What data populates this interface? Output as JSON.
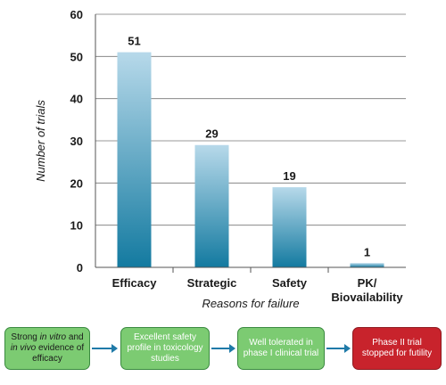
{
  "chart_data": {
    "type": "bar",
    "categories": [
      [
        "Efficacy"
      ],
      [
        "Strategic"
      ],
      [
        "Safety"
      ],
      [
        "PK/",
        "Biovailability"
      ]
    ],
    "values": [
      51,
      29,
      19,
      1
    ],
    "data_labels": [
      "51",
      "29",
      "19",
      "1"
    ],
    "ylabel": "Number of trials",
    "xlabel": "Reasons for failure",
    "ylim": [
      0,
      60
    ],
    "yticks": [
      "0",
      "10",
      "20",
      "30",
      "40",
      "50",
      "60"
    ],
    "grid": true,
    "bar_gradient": [
      "#b7d9ea",
      "#137aa0"
    ]
  },
  "flow": {
    "step1_parts": [
      {
        "text": "Strong ",
        "italic": false
      },
      {
        "text": "in vitro",
        "italic": true
      },
      {
        "text": " and ",
        "italic": false
      },
      {
        "text": "in vivo",
        "italic": true
      },
      {
        "text": " evidence of efficacy",
        "italic": false
      }
    ],
    "step2": "Excellent safety profile in toxicology studies",
    "step3": "Well tolerated in phase I clinical trial",
    "step4": "Phase II trial stopped for futility"
  }
}
